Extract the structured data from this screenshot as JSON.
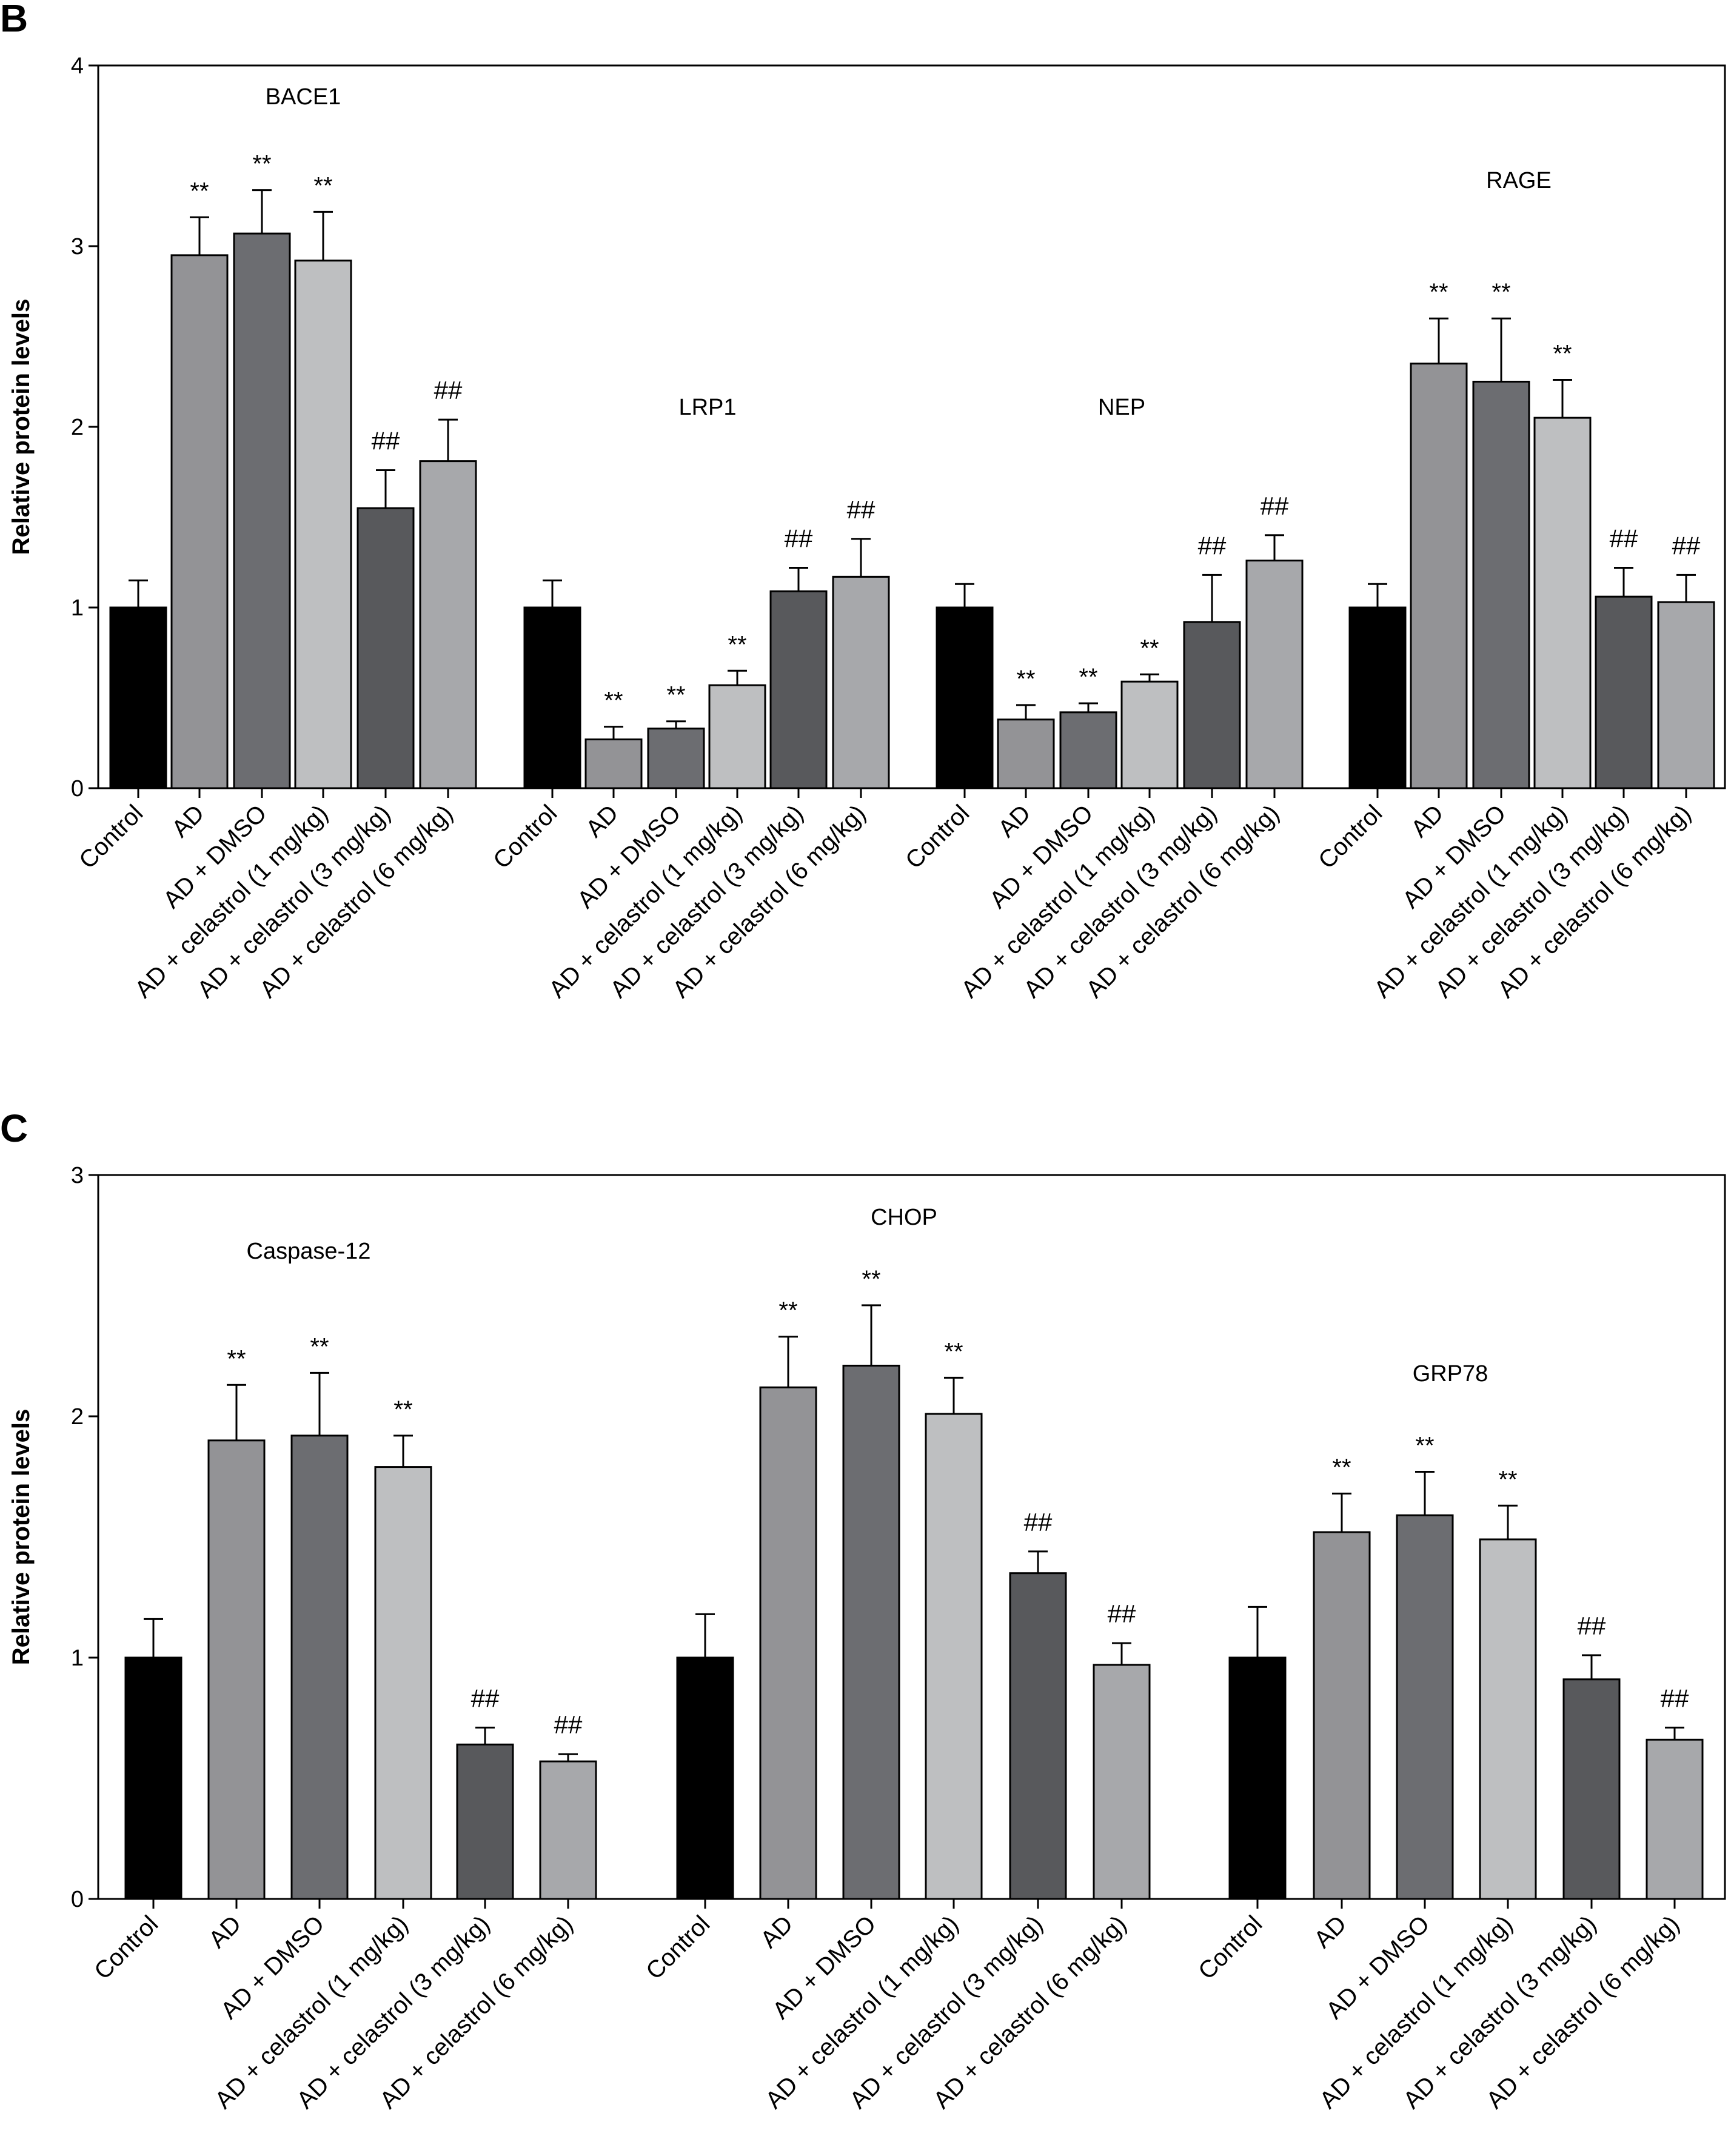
{
  "panels": [
    {
      "panel_label": "B"
    },
    {
      "panel_label": "C"
    }
  ],
  "chart_data": [
    {
      "type": "bar",
      "panel": "B",
      "ylabel": "Relative protein levels",
      "ylim": [
        0,
        4
      ],
      "yticks": [
        "0",
        "1",
        "2",
        "3",
        "4"
      ],
      "grid": false,
      "group_labels": [
        "BACE1",
        "LRP1",
        "NEP",
        "RAGE"
      ],
      "categories": [
        "Control",
        "AD",
        "AD + DMSO",
        "AD + celastrol (1 mg/kg)",
        "AD + celastrol (3 mg/kg)",
        "AD + celastrol (6 mg/kg)",
        "Control",
        "AD",
        "AD + DMSO",
        "AD + celastrol (1 mg/kg)",
        "AD + celastrol (3 mg/kg)",
        "AD + celastrol (6 mg/kg)",
        "Control",
        "AD",
        "AD + DMSO",
        "AD + celastrol (1 mg/kg)",
        "AD + celastrol (3 mg/kg)",
        "AD + celastrol (6 mg/kg)",
        "Control",
        "AD",
        "AD + DMSO",
        "AD + celastrol (1 mg/kg)",
        "AD + celastrol (3 mg/kg)",
        "AD + celastrol (6 mg/kg)"
      ],
      "values": [
        1.0,
        2.95,
        3.07,
        2.92,
        1.55,
        1.81,
        1.0,
        0.27,
        0.33,
        0.57,
        1.09,
        1.17,
        1.0,
        0.38,
        0.42,
        0.59,
        0.92,
        1.26,
        1.0,
        2.35,
        2.25,
        2.05,
        1.06,
        1.03
      ],
      "errors": [
        0.15,
        0.21,
        0.24,
        0.27,
        0.21,
        0.23,
        0.15,
        0.07,
        0.04,
        0.08,
        0.13,
        0.21,
        0.13,
        0.08,
        0.05,
        0.04,
        0.26,
        0.14,
        0.13,
        0.25,
        0.35,
        0.21,
        0.16,
        0.15
      ],
      "annotations": [
        "",
        "**",
        "**",
        "**",
        "##",
        "##",
        "",
        "**",
        "**",
        "**",
        "##",
        "##",
        "",
        "**",
        "**",
        "**",
        "##",
        "##",
        "",
        "**",
        "**",
        "**",
        "##",
        "##"
      ],
      "bar_colors": [
        "#000000",
        "#939396",
        "#6c6d71",
        "#bebfc1",
        "#58595c",
        "#a7a8ab"
      ]
    },
    {
      "type": "bar",
      "panel": "C",
      "ylabel": "Relative protein levels",
      "ylim": [
        0,
        3
      ],
      "yticks": [
        "0",
        "1",
        "2",
        "3"
      ],
      "grid": false,
      "group_labels": [
        "Caspase-12",
        "CHOP",
        "GRP78"
      ],
      "categories": [
        "Control",
        "AD",
        "AD + DMSO",
        "AD + celastrol (1 mg/kg)",
        "AD + celastrol (3 mg/kg)",
        "AD + celastrol (6 mg/kg)",
        "Control",
        "AD",
        "AD + DMSO",
        "AD + celastrol (1 mg/kg)",
        "AD + celastrol (3 mg/kg)",
        "AD + celastrol (6 mg/kg)",
        "Control",
        "AD",
        "AD + DMSO",
        "AD + celastrol (1 mg/kg)",
        "AD + celastrol (3 mg/kg)",
        "AD + celastrol (6 mg/kg)"
      ],
      "values": [
        1.0,
        1.9,
        1.92,
        1.79,
        0.64,
        0.57,
        1.0,
        2.12,
        2.21,
        2.01,
        1.35,
        0.97,
        1.0,
        1.52,
        1.59,
        1.49,
        0.91,
        0.66
      ],
      "errors": [
        0.16,
        0.23,
        0.26,
        0.13,
        0.07,
        0.03,
        0.18,
        0.21,
        0.25,
        0.15,
        0.09,
        0.09,
        0.21,
        0.16,
        0.18,
        0.14,
        0.1,
        0.05
      ],
      "annotations": [
        "",
        "**",
        "**",
        "**",
        "##",
        "##",
        "",
        "**",
        "**",
        "**",
        "##",
        "##",
        "",
        "**",
        "**",
        "**",
        "##",
        "##"
      ],
      "bar_colors": [
        "#000000",
        "#939396",
        "#6c6d71",
        "#bebfc1",
        "#58595c",
        "#a7a8ab"
      ]
    }
  ]
}
